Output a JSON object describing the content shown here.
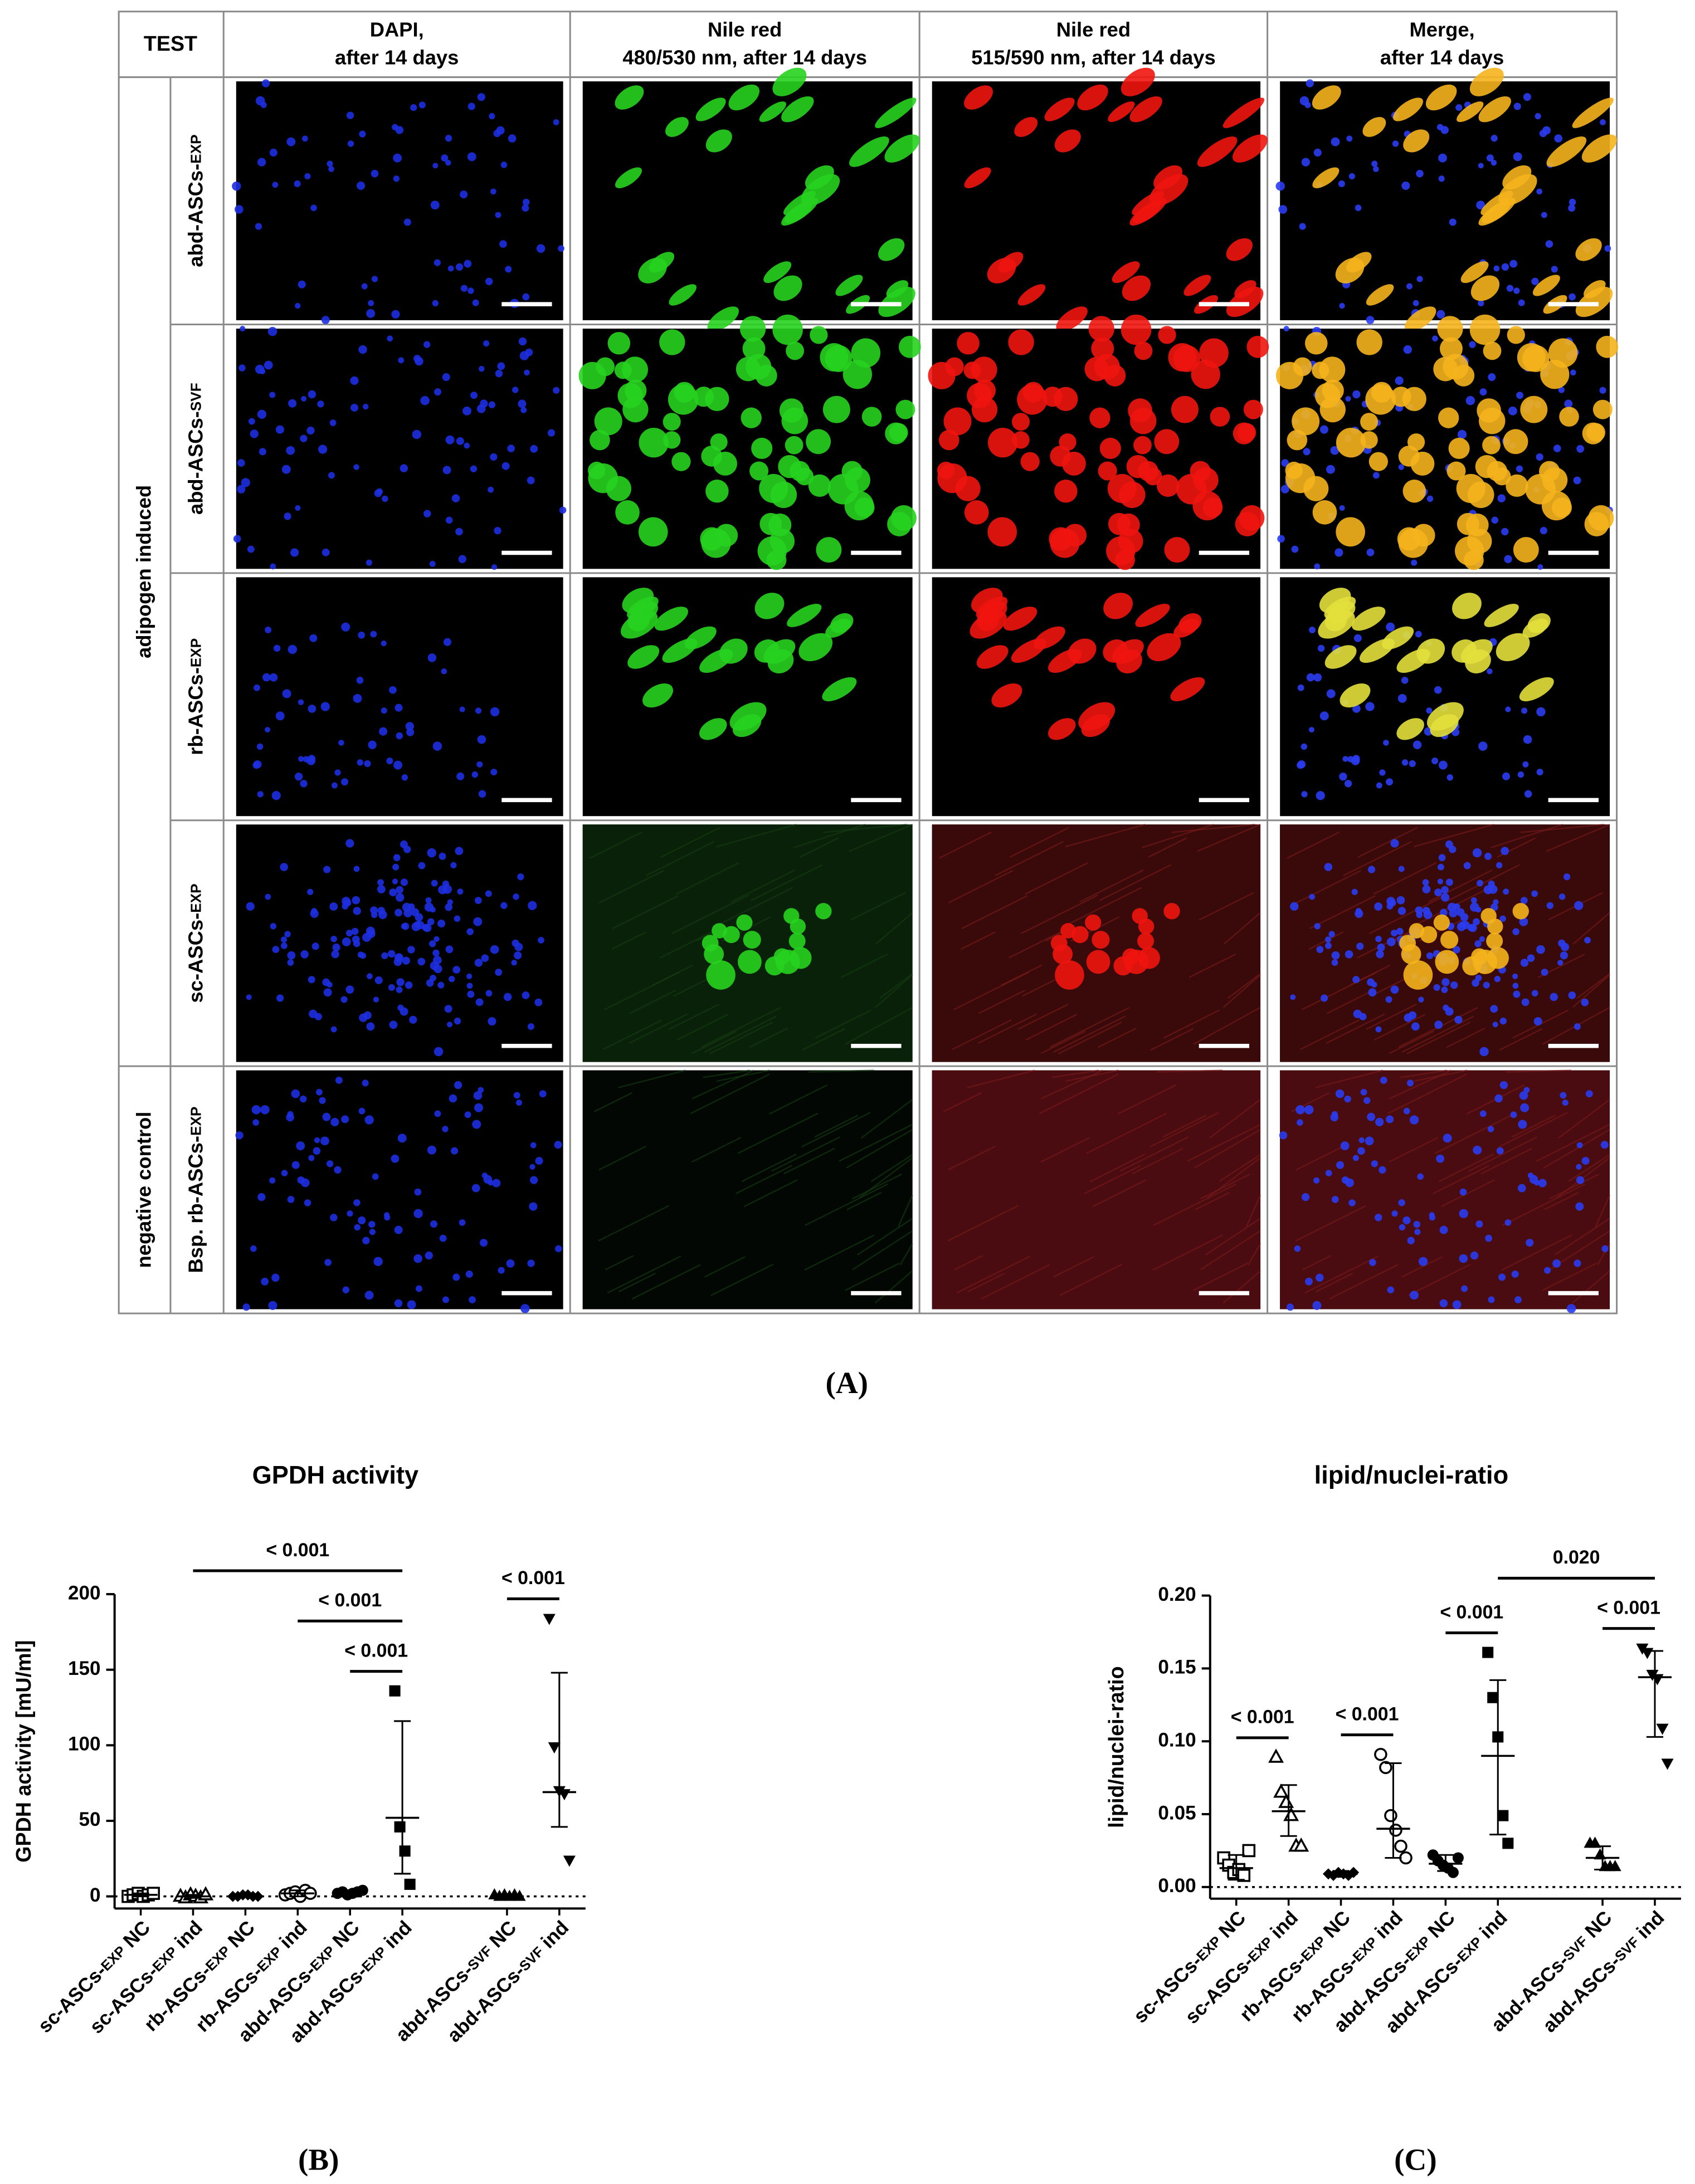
{
  "panel_a": {
    "label": "(A)",
    "header": {
      "corner": "TEST",
      "columns": [
        [
          "DAPI,",
          "after 14 days"
        ],
        [
          "Nile red",
          "480/530 nm, after 14 days"
        ],
        [
          "Nile red",
          "515/590 nm, after 14 days"
        ],
        [
          "Merge,",
          "after 14 days"
        ]
      ]
    },
    "groups": [
      {
        "label": "adipogen induced",
        "rows": [
          "abd-ASCs-EXP",
          "abd-ASCs-SVF",
          "rb-ASCs-EXP",
          "sc-ASCs-EXP"
        ]
      },
      {
        "label": "negative control",
        "rows": [
          "Bsp. rb-ASCs-EXP"
        ]
      }
    ]
  },
  "chart_data": [
    {
      "type": "dot",
      "label": "(B)",
      "title": "GPDH activity",
      "y_label": "GPDH activity [mU/ml]",
      "categories": [
        "sc-ASCs-EXP NC",
        "sc-ASCs-EXP ind",
        "rb-ASCs-EXP NC",
        "rb-ASCs-EXP ind",
        "abd-ASCs-EXP NC",
        "abd-ASCs-EXP ind",
        null,
        "abd-ASCs-SVF NC",
        "abd-ASCs-SVF ind"
      ],
      "markers": [
        "open-square",
        "open-triangle",
        "diamond",
        "open-circle",
        "circle",
        "square",
        null,
        "triangle",
        "down-triangle"
      ],
      "values": [
        [
          0,
          1,
          2,
          0,
          1,
          2
        ],
        [
          0,
          -1,
          1,
          0,
          -1,
          1
        ],
        [
          0,
          0,
          1,
          1,
          0,
          0
        ],
        [
          1,
          2,
          3,
          0,
          4,
          2
        ],
        [
          2,
          3,
          1,
          2,
          3,
          4
        ],
        [
          136,
          46,
          30,
          8
        ],
        null,
        [
          1,
          0,
          1,
          0,
          1,
          0
        ],
        [
          184,
          99,
          70,
          68,
          24
        ]
      ],
      "means": [
        1,
        0,
        0,
        2,
        2,
        52,
        null,
        0,
        69
      ],
      "ranges": [
        [
          0,
          2
        ],
        [
          -1,
          1
        ],
        [
          0,
          1
        ],
        [
          0,
          4
        ],
        [
          1,
          4
        ],
        [
          15,
          116
        ],
        null,
        [
          0,
          1
        ],
        [
          46,
          148
        ]
      ],
      "brackets": [
        {
          "label": "< 0.001",
          "between": [
            "sc-ASCs-EXP ind",
            "abd-ASCs-EXP ind"
          ]
        },
        {
          "label": "< 0.001",
          "between": [
            "rb-ASCs-EXP ind",
            "abd-ASCs-EXP ind"
          ]
        },
        {
          "label": "< 0.001",
          "between": [
            "abd-ASCs-EXP NC",
            "abd-ASCs-EXP ind"
          ]
        },
        {
          "label": "< 0.001",
          "between": [
            "abd-ASCs-SVF NC",
            "abd-ASCs-SVF ind"
          ]
        }
      ],
      "ylim": [
        -8,
        200
      ],
      "yticks": [
        0,
        50,
        100,
        150,
        200
      ],
      "zero_line": true,
      "color": "#000000"
    },
    {
      "type": "dot",
      "label": "(C)",
      "title": "lipid/nuclei-ratio",
      "y_label": "lipid/nuclei-ratio",
      "categories": [
        "sc-ASCs-EXP NC",
        "sc-ASCs-EXP ind",
        "rb-ASCs-EXP NC",
        "rb-ASCs-EXP ind",
        "abd-ASCs-EXP NC",
        "abd-ASCs-EXP ind",
        null,
        "abd-ASCs-SVF NC",
        "abd-ASCs-SVF ind"
      ],
      "markers": [
        "open-square",
        "open-triangle",
        "diamond",
        "open-circle",
        "circle",
        "square",
        null,
        "triangle",
        "down-triangle"
      ],
      "values": [
        [
          0.02,
          0.015,
          0.01,
          0.012,
          0.008,
          0.025
        ],
        [
          0.089,
          0.065,
          0.058,
          0.049,
          0.028,
          0.028
        ],
        [
          0.009,
          0.008,
          0.01,
          0.009,
          0.008,
          0.01
        ],
        [
          0.091,
          0.082,
          0.049,
          0.039,
          0.028,
          0.02
        ],
        [
          0.022,
          0.018,
          0.015,
          0.013,
          0.01,
          0.02
        ],
        [
          0.161,
          0.13,
          0.103,
          0.049,
          0.03
        ],
        null,
        [
          0.03,
          0.03,
          0.022,
          0.014,
          0.014,
          0.014
        ],
        [
          0.164,
          0.161,
          0.146,
          0.143,
          0.109,
          0.085
        ]
      ],
      "means": [
        0.013,
        0.052,
        0.009,
        0.04,
        0.016,
        0.09,
        null,
        0.02,
        0.144
      ],
      "ranges": [
        [
          0.005,
          0.022
        ],
        [
          0.035,
          0.07
        ],
        [
          0.007,
          0.011
        ],
        [
          0.02,
          0.085
        ],
        [
          0.011,
          0.022
        ],
        [
          0.036,
          0.142
        ],
        null,
        [
          0.012,
          0.028
        ],
        [
          0.103,
          0.162
        ]
      ],
      "brackets": [
        {
          "label": "< 0.001",
          "between": [
            "sc-ASCs-EXP NC",
            "sc-ASCs-EXP ind"
          ]
        },
        {
          "label": "< 0.001",
          "between": [
            "rb-ASCs-EXP NC",
            "rb-ASCs-EXP ind"
          ]
        },
        {
          "label": "< 0.001",
          "between": [
            "abd-ASCs-EXP NC",
            "abd-ASCs-EXP ind"
          ]
        },
        {
          "label": "< 0.001",
          "between": [
            "abd-ASCs-SVF NC",
            "abd-ASCs-SVF ind"
          ]
        },
        {
          "label": "0.020",
          "between": [
            "abd-ASCs-EXP ind",
            "abd-ASCs-SVF ind"
          ]
        }
      ],
      "ylim": [
        -0.008,
        0.2
      ],
      "yticks": [
        {
          "value": 0,
          "label": "0.00"
        },
        0.05,
        {
          "value": 0.1,
          "label": "0.10"
        },
        0.15,
        {
          "value": 0.2,
          "label": "0.20"
        }
      ],
      "zero_line": true,
      "color": "#000000"
    }
  ]
}
